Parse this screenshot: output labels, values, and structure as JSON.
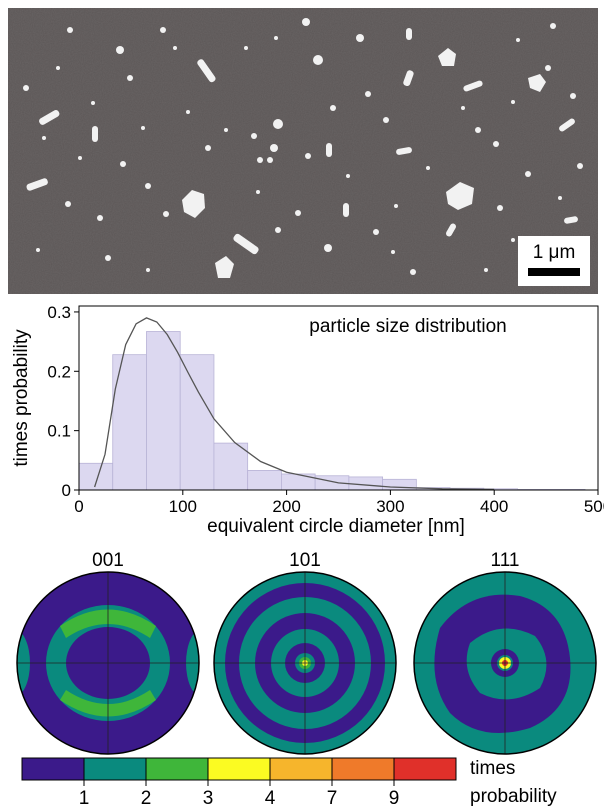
{
  "micrograph": {
    "scale_bar_label": "1 μm"
  },
  "chart_data": [
    {
      "type": "bar",
      "title": "particle size distribution",
      "xlabel": "equivalent circle diameter [nm]",
      "ylabel": "times probability",
      "xlim": [
        0,
        500
      ],
      "ylim": [
        0,
        0.31
      ],
      "xticks": [
        0,
        100,
        200,
        300,
        400,
        500
      ],
      "yticks": [
        0,
        0.1,
        0.2,
        0.3
      ],
      "bin_width": 32.5,
      "bin_starts": [
        0,
        32.5,
        65,
        97.5,
        130,
        162.5,
        195,
        227.5,
        260,
        292.5,
        325,
        357.5,
        390,
        422.5,
        455
      ],
      "values": [
        0.045,
        0.228,
        0.267,
        0.228,
        0.079,
        0.033,
        0.027,
        0.024,
        0.022,
        0.018,
        0.004,
        0.003,
        0.002,
        0.001,
        0.001
      ],
      "fit_curve": {
        "x": [
          15,
          25,
          35,
          45,
          55,
          65,
          75,
          85,
          95,
          105,
          115,
          130,
          150,
          175,
          200,
          250,
          300,
          350,
          400
        ],
        "y": [
          0.005,
          0.06,
          0.17,
          0.245,
          0.28,
          0.29,
          0.283,
          0.262,
          0.232,
          0.198,
          0.165,
          0.12,
          0.08,
          0.048,
          0.03,
          0.012,
          0.005,
          0.002,
          0.001
        ]
      },
      "grid": false,
      "colors": {
        "bars": "#dcd8f0",
        "bar_edge": "#b8b3d6",
        "curve": "#555555"
      }
    },
    {
      "type": "heatmap",
      "subtype": "pole figures",
      "panels": [
        {
          "label": "001"
        },
        {
          "label": "101"
        },
        {
          "label": "111"
        }
      ],
      "colorbar": {
        "title": [
          "times",
          "probability"
        ],
        "tick_labels": [
          "1",
          "2",
          "3",
          "4",
          "7",
          "9"
        ],
        "colors": [
          "#3b1a8a",
          "#0a8a7e",
          "#3fb63a",
          "#fbfb22",
          "#f6b52c",
          "#ef7a2a",
          "#e0302a"
        ]
      }
    }
  ]
}
